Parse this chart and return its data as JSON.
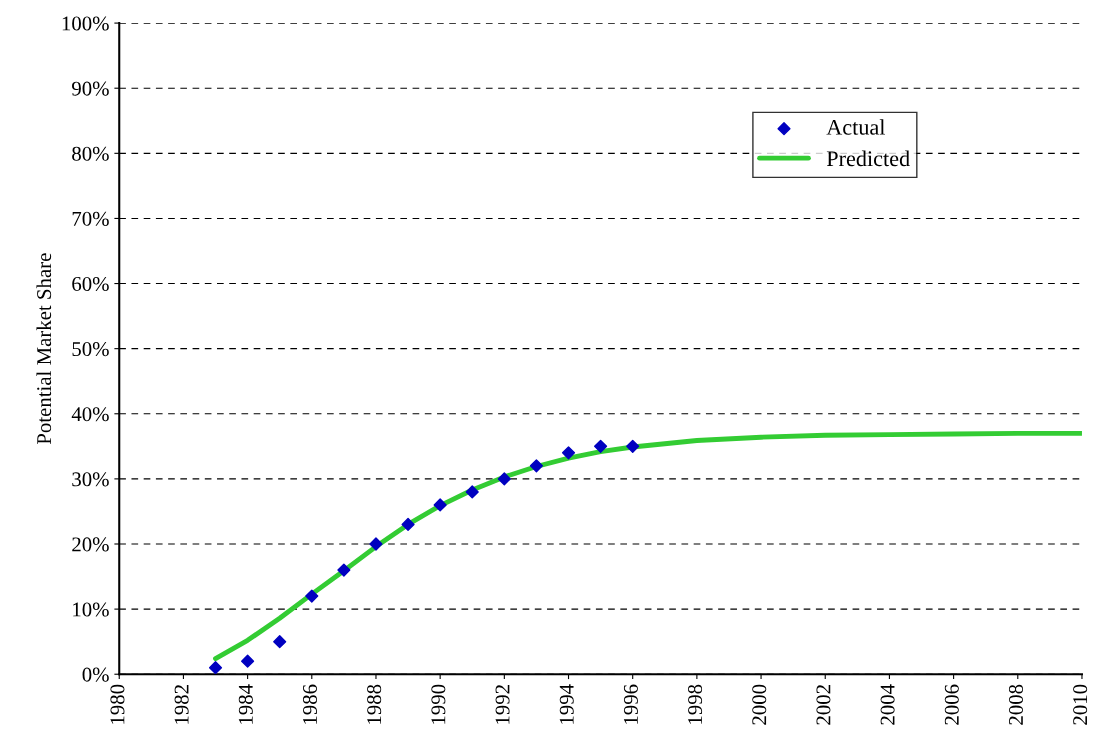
{
  "chart_data": {
    "type": "scatter",
    "ylabel": "Potential Market Share",
    "xlim": [
      1980,
      2010
    ],
    "xticks": [
      1980,
      1982,
      1984,
      1986,
      1988,
      1990,
      1992,
      1994,
      1996,
      1998,
      2000,
      2002,
      2004,
      2006,
      2008,
      2010
    ],
    "ylim": [
      0,
      100
    ],
    "yticks": [
      {
        "value": 0,
        "label": "0%"
      },
      {
        "value": 10,
        "label": "10%"
      },
      {
        "value": 20,
        "label": "20%"
      },
      {
        "value": 30,
        "label": "30%"
      },
      {
        "value": 40,
        "label": "40%"
      },
      {
        "value": 50,
        "label": "50%"
      },
      {
        "value": 60,
        "label": "60%"
      },
      {
        "value": 70,
        "label": "70%"
      },
      {
        "value": 80,
        "label": "80%"
      },
      {
        "value": 90,
        "label": "90%"
      },
      {
        "value": 100,
        "label": "100%"
      }
    ],
    "grid": "y",
    "legend": "top right",
    "series": [
      {
        "name": "Actual",
        "marker": "diamond",
        "color": "#0000c0",
        "x": [
          1983,
          1984,
          1985,
          1986,
          1987,
          1988,
          1989,
          1990,
          1991,
          1992,
          1993,
          1994,
          1995,
          1996
        ],
        "values": [
          1,
          2,
          5,
          12,
          16,
          20,
          23,
          26,
          28,
          30,
          32,
          34,
          35,
          35
        ]
      },
      {
        "name": "Predicted",
        "type": "line",
        "marker": "none",
        "color": "#33cc33",
        "x": [
          1983,
          1984,
          1985,
          1986,
          1987,
          1988,
          1989,
          1990,
          1991,
          1992,
          1993,
          1994,
          1995,
          1996,
          1998,
          2000,
          2002,
          2004,
          2006,
          2008,
          2010
        ],
        "values": [
          2.4,
          5.2,
          8.6,
          12.3,
          15.9,
          19.6,
          23,
          25.9,
          28.3,
          30.3,
          31.9,
          33.2,
          34.2,
          34.9,
          35.9,
          36.4,
          36.7,
          36.8,
          36.9,
          37,
          37
        ]
      }
    ]
  }
}
